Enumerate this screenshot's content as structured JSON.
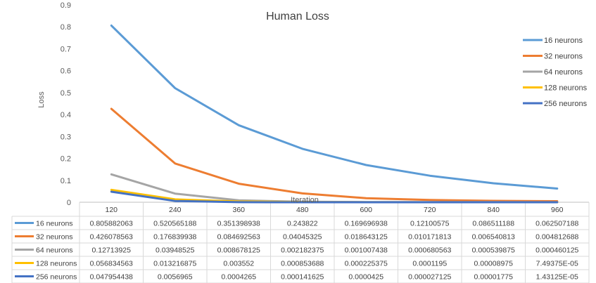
{
  "chart_data": {
    "type": "line",
    "title": "Human Loss",
    "xlabel": "Iteration",
    "ylabel": "Loss",
    "ylim": [
      0,
      0.9
    ],
    "yticks": [
      "0",
      "0.1",
      "0.2",
      "0.3",
      "0.4",
      "0.5",
      "0.6",
      "0.7",
      "0.8",
      "0.9"
    ],
    "categories": [
      "120",
      "240",
      "360",
      "480",
      "600",
      "720",
      "840",
      "960"
    ],
    "legend_position": "top-right",
    "grid": false,
    "data_table": true,
    "series": [
      {
        "name": "16 neurons",
        "color": "#5B9BD5",
        "values": [
          0.805882063,
          0.520565188,
          0.351398938,
          0.243822,
          0.169696938,
          0.12100575,
          0.086511188,
          0.062507188
        ],
        "labels": [
          "0.805882063",
          "0.520565188",
          "0.351398938",
          "0.243822",
          "0.169696938",
          "0.12100575",
          "0.086511188",
          "0.062507188"
        ]
      },
      {
        "name": "32 neurons",
        "color": "#ED7D31",
        "values": [
          0.426078563,
          0.176839938,
          0.084692563,
          0.04045325,
          0.018643125,
          0.010171813,
          0.006540813,
          0.004812688
        ],
        "labels": [
          "0.426078563",
          "0.176839938",
          "0.084692563",
          "0.04045325",
          "0.018643125",
          "0.010171813",
          "0.006540813",
          "0.004812688"
        ]
      },
      {
        "name": "64 neurons",
        "color": "#A5A5A5",
        "values": [
          0.12713925,
          0.03948525,
          0.008678125,
          0.002182375,
          0.001007438,
          0.000680563,
          0.000539875,
          0.000460125
        ],
        "labels": [
          "0.12713925",
          "0.03948525",
          "0.008678125",
          "0.002182375",
          "0.001007438",
          "0.000680563",
          "0.000539875",
          "0.000460125"
        ]
      },
      {
        "name": "128 neurons",
        "color": "#FFC000",
        "values": [
          0.056834563,
          0.013216875,
          0.003552,
          0.000853688,
          0.000225375,
          0.0001195,
          8.975e-05,
          7.49375e-05
        ],
        "labels": [
          "0.056834563",
          "0.013216875",
          "0.003552",
          "0.000853688",
          "0.000225375",
          "0.0001195",
          "0.00008975",
          "7.49375E-05"
        ]
      },
      {
        "name": "256 neurons",
        "color": "#4472C4",
        "values": [
          0.047954438,
          0.0056965,
          0.0004265,
          0.000141625,
          4.25e-05,
          2.7125e-05,
          1.775e-05,
          1.43125e-05
        ],
        "labels": [
          "0.047954438",
          "0.0056965",
          "0.0004265",
          "0.000141625",
          "0.0000425",
          "0.000027125",
          "0.00001775",
          "1.43125E-05"
        ]
      }
    ]
  }
}
